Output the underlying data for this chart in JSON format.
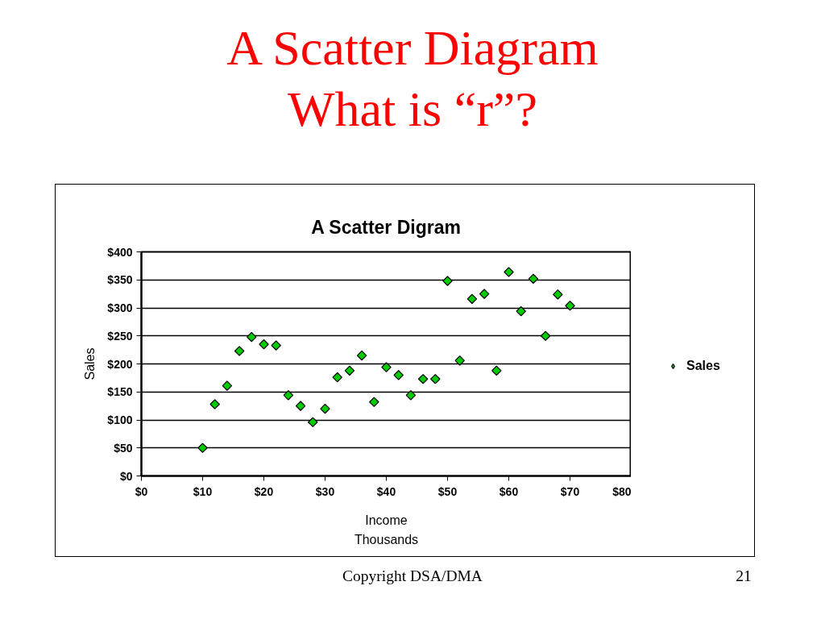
{
  "chart_data": {
    "type": "scatter",
    "title": "A Scatter Digram",
    "xlabel": "Income",
    "ylabel": "Sales",
    "annotations": [
      "A Scatter Diagram",
      "What is “r”?",
      "Thousands",
      "Copyright DSA/DMA",
      "21"
    ],
    "x": [
      10,
      12,
      14,
      16,
      18,
      20,
      22,
      24,
      26,
      28,
      30,
      32,
      34,
      36,
      38,
      40,
      42,
      44,
      46,
      48,
      50,
      52,
      54,
      56,
      58,
      60,
      62,
      64,
      66,
      68,
      70
    ],
    "series": [
      {
        "name": "Sales",
        "color": "#00cc00",
        "values": [
          50,
          128,
          161,
          223,
          248,
          235,
          233,
          144,
          125,
          96,
          120,
          176,
          188,
          215,
          132,
          194,
          180,
          144,
          173,
          173,
          348,
          206,
          316,
          325,
          188,
          364,
          294,
          352,
          250,
          324,
          304
        ]
      }
    ],
    "xlim": [
      0,
      80
    ],
    "ylim": [
      0,
      400
    ],
    "xticks": [
      {
        "value": 0,
        "label": "$0"
      },
      {
        "value": 10,
        "label": "$10"
      },
      {
        "value": 20,
        "label": "$20"
      },
      {
        "value": 30,
        "label": "$30"
      },
      {
        "value": 40,
        "label": "$40"
      },
      {
        "value": 50,
        "label": "$50"
      },
      {
        "value": 60,
        "label": "$60"
      },
      {
        "value": 70,
        "label": "$70"
      },
      {
        "value": 80,
        "label": "$80"
      }
    ],
    "yticks": [
      {
        "value": 0,
        "label": "$0"
      },
      {
        "value": 50,
        "label": "$50"
      },
      {
        "value": 100,
        "label": "$100"
      },
      {
        "value": 150,
        "label": "$150"
      },
      {
        "value": 200,
        "label": "$200"
      },
      {
        "value": 250,
        "label": "$250"
      },
      {
        "value": 300,
        "label": "$300"
      },
      {
        "value": 350,
        "label": "$350"
      },
      {
        "value": 400,
        "label": "$400"
      }
    ],
    "grid": "y",
    "legend": "right",
    "marker": "diamond"
  }
}
